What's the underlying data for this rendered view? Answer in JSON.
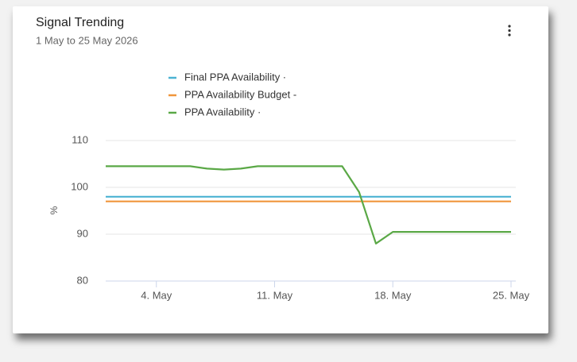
{
  "chart_data": {
    "type": "line",
    "title": "Signal Trending",
    "subtitle": "1 May to 25 May 2026",
    "y_label": "%",
    "x": [
      "2026-05-01",
      "2026-05-02",
      "2026-05-03",
      "2026-05-04",
      "2026-05-05",
      "2026-05-06",
      "2026-05-07",
      "2026-05-08",
      "2026-05-09",
      "2026-05-10",
      "2026-05-11",
      "2026-05-12",
      "2026-05-13",
      "2026-05-14",
      "2026-05-15",
      "2026-05-16",
      "2026-05-17",
      "2026-05-18",
      "2026-05-19",
      "2026-05-20",
      "2026-05-21",
      "2026-05-22",
      "2026-05-23",
      "2026-05-24",
      "2026-05-25"
    ],
    "series": [
      {
        "name": "Final PPA Availability ·",
        "color": "#4bb3d3",
        "values": [
          98,
          98,
          98,
          98,
          98,
          98,
          98,
          98,
          98,
          98,
          98,
          98,
          98,
          98,
          98,
          98,
          98,
          98,
          98,
          98,
          98,
          98,
          98,
          98,
          98
        ]
      },
      {
        "name": "PPA Availability Budget -",
        "color": "#f0963c",
        "values": [
          97,
          97,
          97,
          97,
          97,
          97,
          97,
          97,
          97,
          97,
          97,
          97,
          97,
          97,
          97,
          97,
          97,
          97,
          97,
          97,
          97,
          97,
          97,
          97,
          97
        ]
      },
      {
        "name": "PPA Availability ·",
        "color": "#5aa846",
        "values": [
          104.5,
          104.5,
          104.5,
          104.5,
          104.5,
          104.5,
          104,
          103.8,
          104,
          104.5,
          104.5,
          104.5,
          104.5,
          104.5,
          104.5,
          99,
          88,
          90.5,
          90.5,
          90.5,
          90.5,
          90.5,
          90.5,
          90.5,
          90.5
        ]
      }
    ],
    "xlim": [
      "2026-05-01",
      "2026-05-25"
    ],
    "xticks": [
      {
        "value": "2026-05-04",
        "label": "4. May"
      },
      {
        "value": "2026-05-11",
        "label": "11. May"
      },
      {
        "value": "2026-05-18",
        "label": "18. May"
      },
      {
        "value": "2026-05-25",
        "label": "25. May"
      }
    ],
    "ylim": [
      80,
      110
    ],
    "yticks": [
      80,
      90,
      100,
      110
    ],
    "grid": true,
    "legend": "top"
  }
}
